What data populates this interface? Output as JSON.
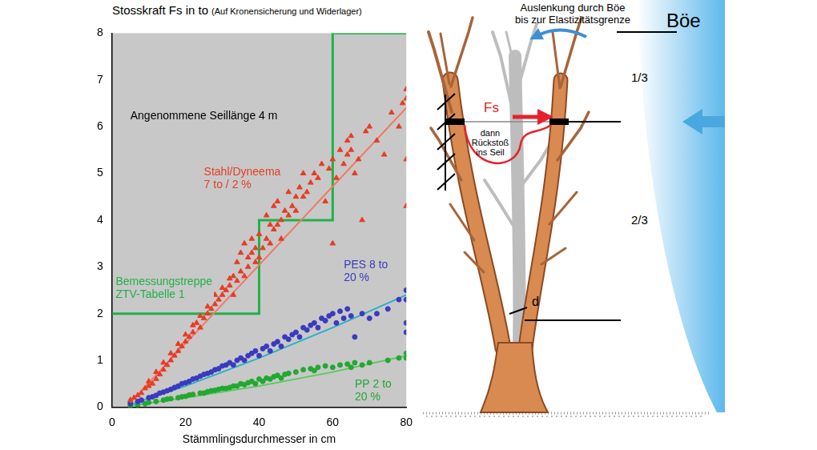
{
  "chart_data": {
    "type": "scatter",
    "title": "Stosskraft Fs in to",
    "subtitle": "(Auf Kronensicherung und Widerlager)",
    "x_label": "Stämmlingsdurchmesser in cm",
    "annotations": [
      "Angenommene Seillänge 4 m"
    ],
    "xlim": [
      0,
      80
    ],
    "xticks": [
      0,
      20,
      40,
      60,
      80
    ],
    "ylim": [
      0,
      8
    ],
    "yticks": [
      0,
      1,
      2,
      3,
      4,
      5,
      6,
      7,
      8
    ],
    "grid": false,
    "series": [
      {
        "name": "Stahl/Dyneema\n7 to / 2 %",
        "color": "#e83c24",
        "marker": "triangle",
        "x": [
          5,
          6,
          7,
          8,
          9,
          10,
          10,
          11,
          12,
          12,
          13,
          14,
          14,
          15,
          16,
          16,
          17,
          18,
          18,
          19,
          20,
          20,
          21,
          22,
          22,
          23,
          24,
          24,
          25,
          26,
          26,
          27,
          28,
          28,
          29,
          30,
          30,
          31,
          32,
          32,
          33,
          33,
          34,
          34,
          35,
          35,
          36,
          36,
          37,
          37,
          38,
          38,
          39,
          39,
          40,
          40,
          41,
          42,
          42,
          43,
          43,
          44,
          44,
          45,
          45,
          46,
          46,
          47,
          48,
          48,
          49,
          50,
          50,
          51,
          52,
          52,
          53,
          54,
          55,
          56,
          57,
          58,
          59,
          60,
          60,
          61,
          62,
          63,
          64,
          64,
          65,
          65,
          66,
          67,
          68,
          69,
          70,
          72,
          74,
          76,
          78,
          79,
          80,
          80,
          80,
          80
        ],
        "values": [
          0.15,
          0.2,
          0.25,
          0.3,
          0.4,
          0.45,
          0.55,
          0.5,
          0.6,
          0.75,
          0.7,
          0.8,
          0.95,
          0.9,
          1.0,
          1.15,
          1.1,
          1.2,
          1.35,
          1.3,
          1.4,
          1.55,
          1.5,
          1.6,
          1.75,
          1.8,
          1.7,
          1.95,
          1.9,
          2.0,
          2.15,
          2.1,
          2.2,
          2.4,
          2.3,
          2.4,
          2.55,
          2.5,
          2.6,
          2.75,
          2.4,
          2.8,
          2.7,
          3.1,
          2.9,
          3.3,
          2.8,
          3.5,
          3.0,
          3.2,
          3.3,
          3.6,
          3.1,
          3.4,
          3.2,
          3.7,
          3.4,
          3.6,
          4.1,
          3.5,
          3.9,
          3.8,
          4.3,
          3.9,
          4.4,
          4.0,
          3.6,
          4.2,
          4.1,
          4.6,
          4.3,
          4.5,
          4.2,
          4.7,
          4.5,
          5.0,
          4.6,
          4.8,
          5.0,
          4.9,
          5.2,
          4.4,
          5.1,
          5.3,
          3.5,
          4.9,
          5.5,
          5.2,
          5.7,
          5.4,
          5.8,
          5.5,
          5.0,
          5.3,
          4.0,
          5.9,
          6.0,
          5.7,
          5.4,
          6.3,
          6.0,
          6.5,
          6.8,
          6.6,
          5.3,
          4.3
        ],
        "trend": {
          "color": "#f07a66",
          "x": [
            5,
            80
          ],
          "values": [
            0.1,
            6.4
          ]
        }
      },
      {
        "name": "PES 8 to\n20 %",
        "color": "#3a3ac0",
        "marker": "circle",
        "x": [
          5,
          7,
          8,
          10,
          11,
          12,
          13,
          14,
          15,
          16,
          17,
          18,
          19,
          20,
          21,
          22,
          23,
          24,
          25,
          26,
          27,
          28,
          29,
          30,
          31,
          32,
          33,
          34,
          35,
          36,
          37,
          38,
          39,
          40,
          41,
          42,
          43,
          44,
          45,
          46,
          47,
          48,
          49,
          50,
          51,
          52,
          53,
          54,
          55,
          56,
          57,
          58,
          59,
          60,
          61,
          62,
          63,
          64,
          65,
          66,
          68,
          70,
          72,
          75,
          78,
          80,
          80,
          80,
          80
        ],
        "values": [
          0.08,
          0.12,
          0.15,
          0.2,
          0.22,
          0.25,
          0.3,
          0.32,
          0.35,
          0.38,
          0.42,
          0.45,
          0.5,
          0.52,
          0.55,
          0.6,
          0.62,
          0.66,
          0.7,
          0.72,
          0.75,
          0.8,
          0.82,
          0.88,
          0.9,
          0.95,
          0.9,
          1.0,
          1.05,
          1.0,
          1.1,
          1.15,
          1.2,
          1.1,
          1.25,
          1.3,
          1.2,
          1.35,
          1.4,
          1.3,
          1.5,
          1.45,
          1.55,
          1.6,
          1.5,
          1.7,
          1.65,
          1.75,
          1.8,
          1.7,
          1.9,
          1.85,
          1.95,
          2.0,
          1.8,
          2.05,
          1.9,
          2.1,
          1.95,
          1.5,
          2.0,
          1.9,
          2.0,
          2.1,
          2.3,
          2.5,
          2.3,
          1.8,
          1.6
        ],
        "trend": {
          "color": "#2ab0c8",
          "x": [
            5,
            20,
            40,
            60,
            80
          ],
          "values": [
            0.05,
            0.45,
            1.05,
            1.7,
            2.4
          ]
        }
      },
      {
        "name": "PP 2 to\n20 %",
        "color": "#22a832",
        "marker": "circle",
        "x": [
          5,
          7,
          9,
          10,
          12,
          14,
          15,
          16,
          18,
          19,
          20,
          21,
          22,
          24,
          25,
          26,
          27,
          28,
          29,
          30,
          31,
          32,
          33,
          34,
          35,
          36,
          37,
          38,
          39,
          40,
          41,
          42,
          43,
          44,
          45,
          46,
          47,
          48,
          50,
          52,
          54,
          55,
          56,
          58,
          60,
          62,
          64,
          65,
          66,
          68,
          70,
          75,
          78,
          80,
          80
        ],
        "values": [
          0.03,
          0.05,
          0.07,
          0.1,
          0.12,
          0.15,
          0.17,
          0.18,
          0.2,
          0.22,
          0.23,
          0.26,
          0.27,
          0.3,
          0.3,
          0.33,
          0.35,
          0.36,
          0.38,
          0.4,
          0.4,
          0.42,
          0.45,
          0.45,
          0.5,
          0.48,
          0.52,
          0.55,
          0.5,
          0.6,
          0.55,
          0.62,
          0.6,
          0.65,
          0.68,
          0.62,
          0.7,
          0.72,
          0.75,
          0.8,
          0.82,
          0.78,
          0.85,
          0.88,
          0.85,
          0.9,
          0.92,
          0.85,
          0.95,
          0.9,
          0.95,
          1.0,
          1.05,
          1.15,
          1.05
        ],
        "trend": {
          "color": "#5cc85c",
          "x": [
            5,
            20,
            40,
            60,
            80
          ],
          "values": [
            0.03,
            0.2,
            0.45,
            0.75,
            1.1
          ]
        }
      },
      {
        "name": "Bemessungstreppe\nZTV-Tabelle 1",
        "type": "line",
        "color": "#22b04a",
        "x": [
          0,
          40,
          40,
          60,
          60,
          80
        ],
        "values": [
          2,
          2,
          4,
          4,
          8,
          8
        ]
      }
    ]
  },
  "diagram": {
    "deflection_label": "Auslenkung durch Böe\nbis zur Elastizitätsgrenze",
    "gust": "Böe",
    "upper_share": "1/3",
    "lower_share": "2/3",
    "force": "Fs",
    "recoil": "dann\nRückstoß\nins Seil",
    "diameter": "d"
  }
}
